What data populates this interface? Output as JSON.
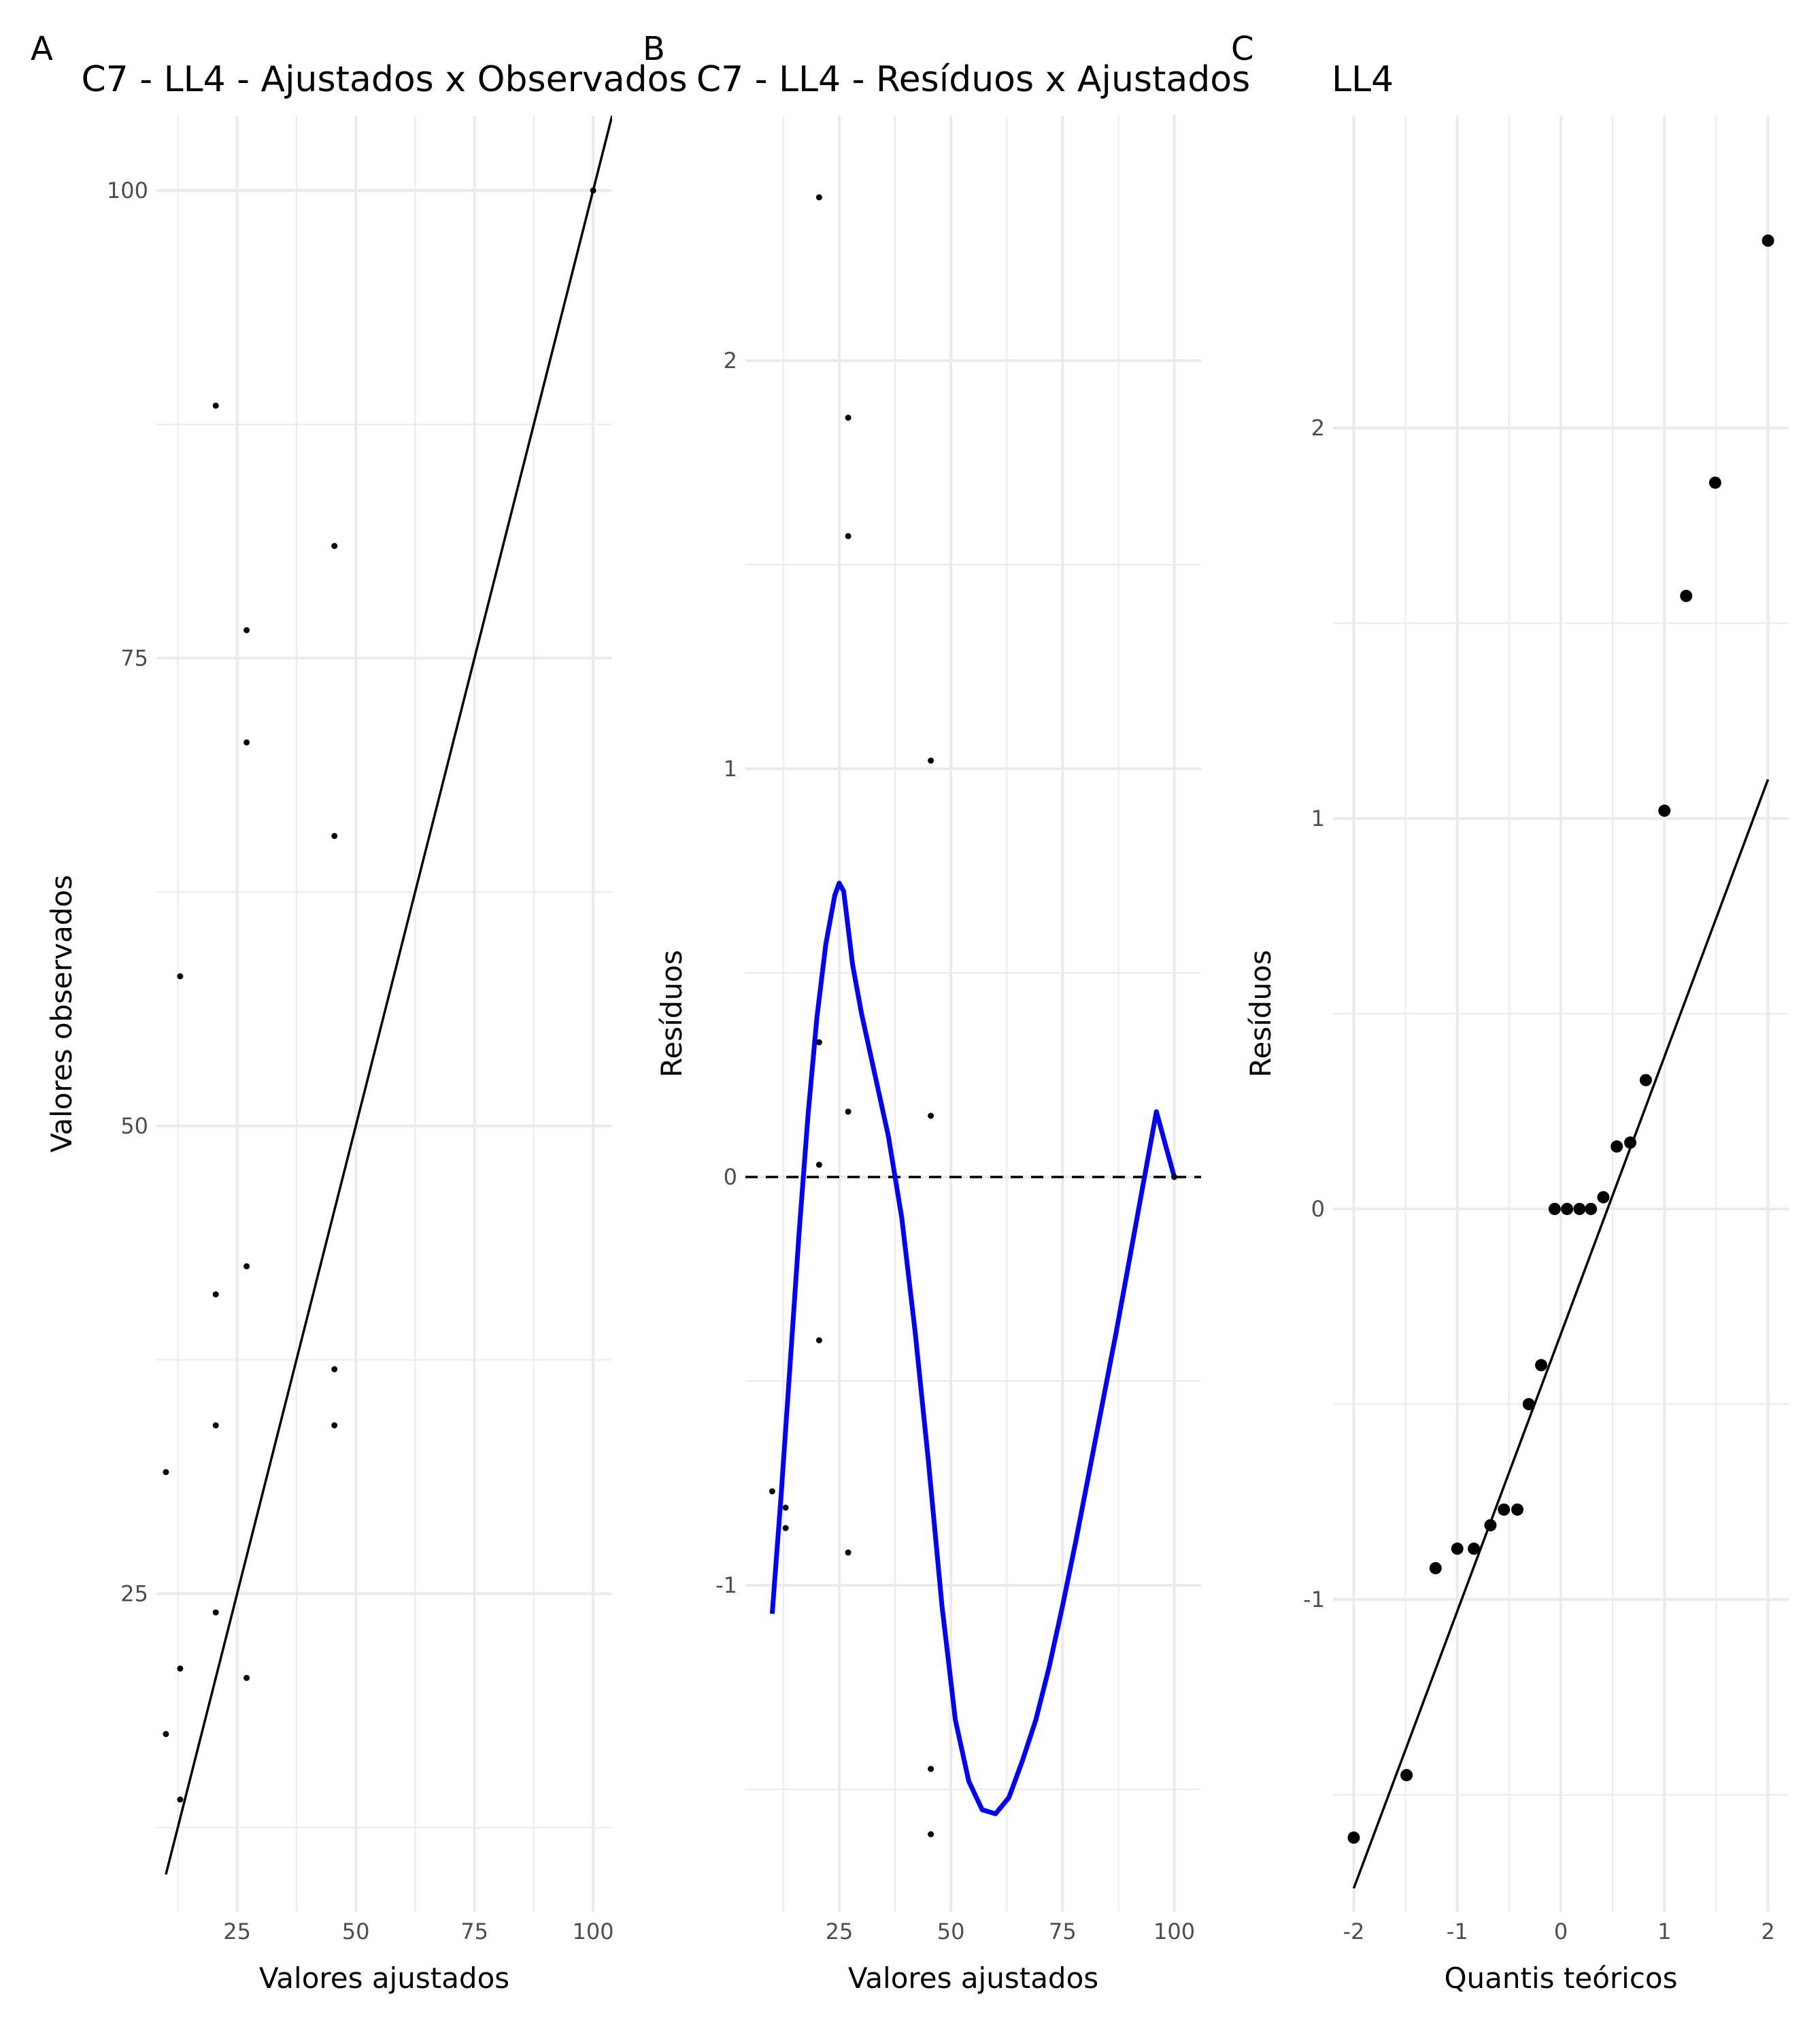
{
  "chart_data": [
    {
      "tag": "A",
      "type": "scatter",
      "title": "C7 - LL4 - Ajustados x Observados",
      "xlabel": "Valores ajustados",
      "ylabel": "Valores observados",
      "xlim": [
        8,
        104
      ],
      "ylim": [
        8,
        104
      ],
      "xticks": [
        25,
        50,
        75,
        100
      ],
      "yticks": [
        25,
        50,
        75,
        100
      ],
      "xminor": [
        12.5,
        37.5,
        62.5,
        87.5
      ],
      "yminor": [
        12.5,
        37.5,
        62.5,
        87.5
      ],
      "xticklabels": [
        "25",
        "50",
        "75",
        "100"
      ],
      "yticklabels": [
        "25",
        "50",
        "75",
        "100"
      ],
      "point_size": "small",
      "points": [
        [
          100,
          100
        ],
        [
          20.5,
          88.5
        ],
        [
          45.5,
          81
        ],
        [
          27,
          76.5
        ],
        [
          27,
          70.5
        ],
        [
          45.5,
          65.5
        ],
        [
          13,
          58
        ],
        [
          27,
          42.5
        ],
        [
          20.5,
          41
        ],
        [
          45.5,
          37
        ],
        [
          20.5,
          34
        ],
        [
          45.5,
          34
        ],
        [
          10,
          31.5
        ],
        [
          20.5,
          24
        ],
        [
          13,
          21
        ],
        [
          27,
          20.5
        ],
        [
          10,
          17.5
        ],
        [
          13,
          14
        ]
      ],
      "lines": [
        {
          "style": "solid",
          "color": "#000000",
          "from": [
            10,
            10
          ],
          "to": [
            104,
            104
          ]
        }
      ]
    },
    {
      "tag": "B",
      "type": "scatter",
      "title": "C7 - LL4 - Resíduos x Ajustados",
      "xlabel": "Valores ajustados",
      "ylabel": "Resíduos",
      "xlim": [
        4,
        106
      ],
      "ylim": [
        -1.8,
        2.6
      ],
      "xticks": [
        25,
        50,
        75,
        100
      ],
      "yticks": [
        -1,
        0,
        1,
        2
      ],
      "xminor": [
        12.5,
        37.5,
        62.5,
        87.5
      ],
      "yminor": [
        -1.5,
        -0.5,
        0.5,
        1.5
      ],
      "xticklabels": [
        "25",
        "50",
        "75",
        "100"
      ],
      "yticklabels": [
        "-1",
        "0",
        "1",
        "2"
      ],
      "point_size": "small",
      "points": [
        [
          20.5,
          2.4
        ],
        [
          27,
          1.86
        ],
        [
          27,
          1.57
        ],
        [
          45.5,
          1.02
        ],
        [
          20.5,
          0.33
        ],
        [
          27,
          0.16
        ],
        [
          45.5,
          0.15
        ],
        [
          20.5,
          0.03
        ],
        [
          100,
          0
        ],
        [
          20.5,
          -0.4
        ],
        [
          10,
          -0.77
        ],
        [
          13,
          -0.81
        ],
        [
          13,
          -0.86
        ],
        [
          27,
          -0.92
        ],
        [
          45.5,
          -1.45
        ],
        [
          45.5,
          -1.61
        ]
      ],
      "lines": [
        {
          "style": "dashed",
          "color": "#000000",
          "from": [
            4,
            0
          ],
          "to": [
            106,
            0
          ]
        }
      ],
      "smooth": {
        "color": "#0000ff",
        "x": [
          10,
          12,
          14,
          16,
          18,
          20,
          22,
          24,
          25,
          26,
          27,
          28,
          30,
          33,
          36,
          39,
          42,
          45,
          48,
          51,
          54,
          57,
          60,
          63,
          66,
          69,
          72,
          75,
          78,
          81,
          84,
          87,
          90,
          93,
          96,
          100
        ],
        "y": [
          -1.07,
          -0.78,
          -0.46,
          -0.14,
          0.15,
          0.39,
          0.57,
          0.69,
          0.72,
          0.7,
          0.61,
          0.52,
          0.4,
          0.25,
          0.1,
          -0.1,
          -0.38,
          -0.7,
          -1.05,
          -1.33,
          -1.48,
          -1.55,
          -1.56,
          -1.52,
          -1.43,
          -1.33,
          -1.2,
          -1.05,
          -0.89,
          -0.72,
          -0.55,
          -0.38,
          -0.2,
          -0.02,
          0.16,
          0.0
        ]
      }
    },
    {
      "tag": "C",
      "type": "scatter",
      "title": "LL4",
      "xlabel": "Quantis teóricos",
      "ylabel": "Resíduos",
      "xlim": [
        -2.2,
        2.2
      ],
      "ylim": [
        -1.8,
        2.8
      ],
      "xticks": [
        -2,
        -1,
        0,
        1,
        2
      ],
      "yticks": [
        -1,
        0,
        1,
        2
      ],
      "xminor": [
        -1.5,
        -0.5,
        0.5,
        1.5
      ],
      "yminor": [
        -1.5,
        -0.5,
        0.5,
        1.5
      ],
      "xticklabels": [
        "-2",
        "-1",
        "0",
        "1",
        "2"
      ],
      "yticklabels": [
        "-1",
        "0",
        "1",
        "2"
      ],
      "point_size": "large",
      "points": [
        [
          -2.0,
          -1.61
        ],
        [
          -1.49,
          -1.45
        ],
        [
          -1.21,
          -0.92
        ],
        [
          -1.0,
          -0.87
        ],
        [
          -0.84,
          -0.87
        ],
        [
          -0.68,
          -0.81
        ],
        [
          -0.55,
          -0.77
        ],
        [
          -0.42,
          -0.77
        ],
        [
          -0.31,
          -0.5
        ],
        [
          -0.19,
          -0.4
        ],
        [
          -0.06,
          0.0
        ],
        [
          0.06,
          0.0
        ],
        [
          0.18,
          0.0
        ],
        [
          0.29,
          0.0
        ],
        [
          0.41,
          0.03
        ],
        [
          0.54,
          0.16
        ],
        [
          0.67,
          0.17
        ],
        [
          0.82,
          0.33
        ],
        [
          1.0,
          1.02
        ],
        [
          1.21,
          1.57
        ],
        [
          1.49,
          1.86
        ],
        [
          2.0,
          2.48
        ]
      ],
      "lines": [
        {
          "style": "solid",
          "color": "#000000",
          "from": [
            -2,
            -1.74
          ],
          "to": [
            2,
            1.1
          ]
        }
      ]
    }
  ]
}
